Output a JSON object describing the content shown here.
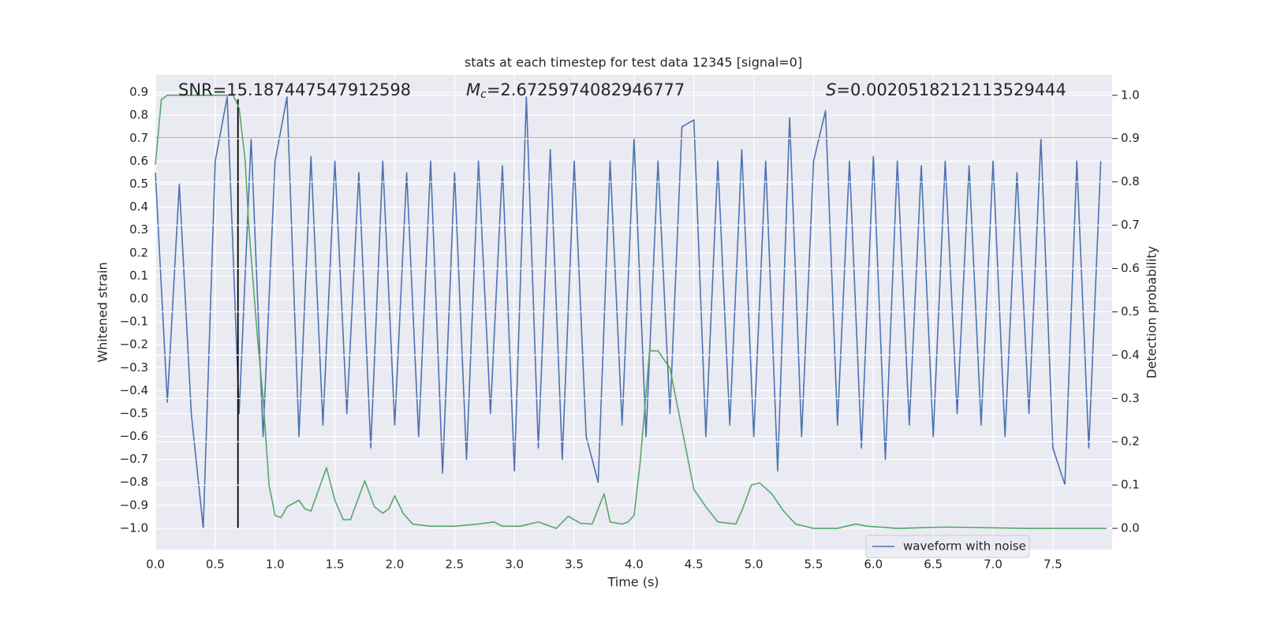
{
  "chart_data": {
    "type": "line",
    "title": "stats at each timestep for test data 12345 [signal=0]",
    "x_label": "Time (s)",
    "y_label": "Whitened strain",
    "y2_label": "Detection probability",
    "annotations": [
      {
        "text": "SNR=15.187447547912598"
      },
      {
        "symbol": "M",
        "subscript": "c",
        "text": "=2.6725974082946777"
      },
      {
        "symbol": "S",
        "text": "=0.0020518212113529444"
      }
    ],
    "xlim": [
      0,
      7.995
    ],
    "ylim": [
      -1.093,
      0.976
    ],
    "y2lim": [
      -0.049,
      1.047
    ],
    "xticks": [
      {
        "value": 0,
        "label": "0.0"
      },
      0.5,
      {
        "value": 1,
        "label": "1.0"
      },
      1.5,
      {
        "value": 2,
        "label": "2.0"
      },
      2.5,
      {
        "value": 3,
        "label": "3.0"
      },
      3.5,
      {
        "value": 4,
        "label": "4.0"
      },
      4.5,
      {
        "value": 5,
        "label": "5.0"
      },
      5.5,
      {
        "value": 6,
        "label": "6.0"
      },
      6.5,
      {
        "value": 7,
        "label": "7.0"
      },
      7.5
    ],
    "yticks": [
      {
        "value": -1,
        "label": "−1.0"
      },
      {
        "value": -0.9,
        "label": "−0.9"
      },
      {
        "value": -0.8,
        "label": "−0.8"
      },
      {
        "value": -0.7,
        "label": "−0.7"
      },
      {
        "value": -0.6,
        "label": "−0.6"
      },
      {
        "value": -0.5,
        "label": "−0.5"
      },
      {
        "value": -0.4,
        "label": "−0.4"
      },
      {
        "value": -0.3,
        "label": "−0.3"
      },
      {
        "value": -0.2,
        "label": "−0.2"
      },
      {
        "value": -0.1,
        "label": "−0.1"
      },
      {
        "value": 0,
        "label": "0.0"
      },
      0.1,
      0.2,
      0.3,
      0.4,
      0.5,
      0.6,
      0.7,
      0.8,
      0.9
    ],
    "y2ticks": [
      {
        "value": 0,
        "label": "0.0"
      },
      0.1,
      0.2,
      0.3,
      0.4,
      0.5,
      0.6,
      0.7,
      0.8,
      0.9,
      {
        "value": 1,
        "label": "1.0"
      }
    ],
    "grid": true,
    "legend": "lower right",
    "hlines": [
      {
        "y": 0.7,
        "color": "#c44e52"
      }
    ],
    "vlines": [
      {
        "x": 0.69,
        "ymin": -1.0,
        "ymax": 0.87,
        "color": "#000000"
      }
    ],
    "series": [
      {
        "name": "waveform with noise",
        "color": "#4c72b0",
        "x": [
          0,
          0.1,
          0.2,
          0.3,
          0.4,
          0.5,
          0.6,
          0.7,
          0.8,
          0.9,
          1,
          1.1,
          1.2,
          1.3,
          1.4,
          1.5,
          1.6,
          1.7,
          1.8,
          1.9,
          2,
          2.1,
          2.2,
          2.3,
          2.4,
          2.5,
          2.6,
          2.7,
          2.8,
          2.9,
          3,
          3.1,
          3.2,
          3.3,
          3.4,
          3.5,
          3.6,
          3.7,
          3.8,
          3.9,
          4,
          4.1,
          4.2,
          4.3,
          4.4,
          4.5,
          4.6,
          4.7,
          4.8,
          4.9,
          5,
          5.1,
          5.2,
          5.3,
          5.4,
          5.5,
          5.6,
          5.7,
          5.8,
          5.9,
          6,
          6.1,
          6.2,
          6.3,
          6.4,
          6.5,
          6.6,
          6.7,
          6.8,
          6.9,
          7,
          7.1,
          7.2,
          7.3,
          7.4,
          7.5,
          7.6,
          7.7,
          7.8,
          7.9
        ],
        "values": [
          0.55,
          -0.45,
          0.5,
          -0.5,
          -1.0,
          0.6,
          0.88,
          -0.5,
          0.7,
          -0.6,
          0.6,
          0.88,
          -0.6,
          0.62,
          -0.55,
          0.6,
          -0.5,
          0.55,
          -0.65,
          0.6,
          -0.55,
          0.55,
          -0.6,
          0.6,
          -0.76,
          0.55,
          -0.7,
          0.6,
          -0.5,
          0.58,
          -0.75,
          0.88,
          -0.65,
          0.65,
          -0.7,
          0.6,
          -0.6,
          -0.8,
          0.6,
          -0.55,
          0.7,
          -0.6,
          0.6,
          -0.5,
          0.75,
          0.78,
          -0.6,
          0.6,
          -0.55,
          0.65,
          -0.6,
          0.6,
          -0.75,
          0.79,
          -0.6,
          0.6,
          0.82,
          -0.55,
          0.6,
          -0.65,
          0.62,
          -0.7,
          0.6,
          -0.55,
          0.58,
          -0.6,
          0.6,
          -0.5,
          0.58,
          -0.55,
          0.6,
          -0.6,
          0.55,
          -0.5,
          0.7,
          -0.65,
          -0.81,
          0.6,
          -0.65,
          0.6
        ]
      },
      {
        "color": "#55a868",
        "axis": "y2",
        "x": [
          0,
          0.05,
          0.1,
          0.2,
          0.4,
          0.65,
          0.7,
          0.75,
          0.78,
          0.85,
          0.9,
          0.95,
          1,
          1.05,
          1.1,
          1.2,
          1.25,
          1.3,
          1.43,
          1.5,
          1.57,
          1.63,
          1.75,
          1.83,
          1.9,
          1.95,
          2,
          2.07,
          2.15,
          2.3,
          2.5,
          2.7,
          2.83,
          2.9,
          3.05,
          3.2,
          3.35,
          3.45,
          3.55,
          3.65,
          3.75,
          3.8,
          3.9,
          3.95,
          4,
          4.05,
          4.13,
          4.2,
          4.3,
          4.4,
          4.5,
          4.6,
          4.7,
          4.85,
          4.9,
          4.98,
          5.05,
          5.15,
          5.25,
          5.35,
          5.5,
          5.7,
          5.85,
          5.95,
          6.2,
          6.6,
          7.3,
          7.6,
          7.95
        ],
        "values": [
          0.84,
          0.99,
          1.0,
          1.0,
          1.0,
          1.0,
          0.97,
          0.85,
          0.7,
          0.45,
          0.3,
          0.1,
          0.03,
          0.025,
          0.05,
          0.065,
          0.045,
          0.04,
          0.14,
          0.065,
          0.02,
          0.02,
          0.11,
          0.05,
          0.035,
          0.045,
          0.075,
          0.035,
          0.01,
          0.005,
          0.005,
          0.01,
          0.015,
          0.005,
          0.005,
          0.015,
          0.0,
          0.028,
          0.012,
          0.01,
          0.08,
          0.015,
          0.01,
          0.015,
          0.03,
          0.15,
          0.41,
          0.41,
          0.37,
          0.23,
          0.09,
          0.05,
          0.015,
          0.01,
          0.04,
          0.1,
          0.105,
          0.08,
          0.04,
          0.01,
          0.0,
          0.0,
          0.01,
          0.005,
          0.0,
          0.003,
          0.0,
          0.0,
          0.0
        ]
      }
    ]
  }
}
